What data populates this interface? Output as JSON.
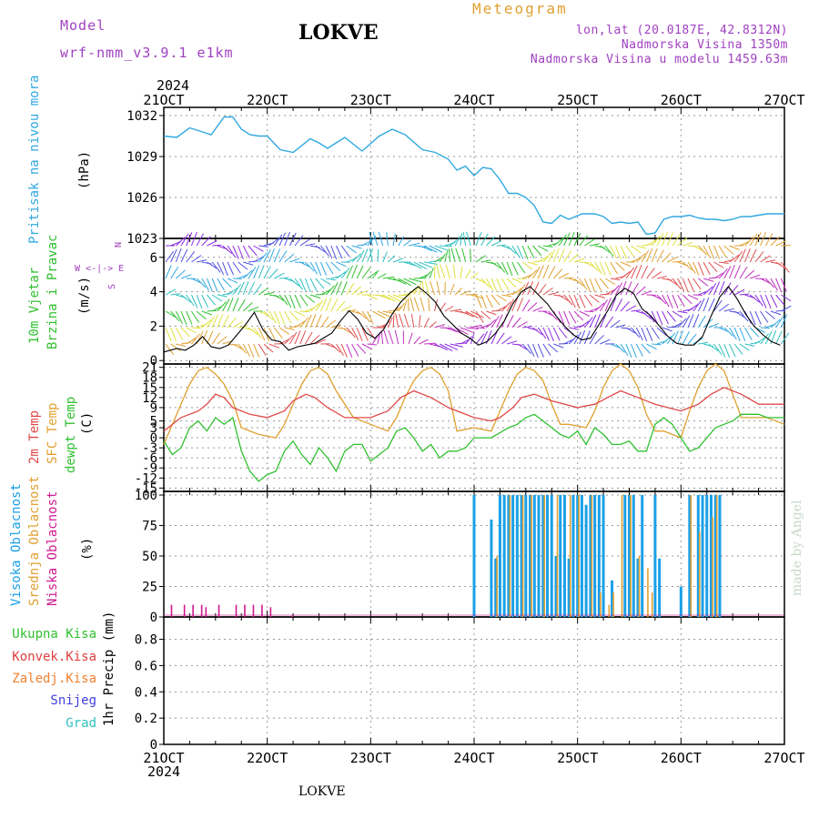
{
  "header": {
    "model_label": "Model",
    "model_name": "wrf-nmm_v3.9.1 e1km",
    "station": "LOKVE",
    "title": "Meteogram",
    "coords": "lon,lat (20.0187E, 42.8312N)",
    "elevation": "Nadmorska Visina 1350m",
    "model_elevation": "Nadmorska Visina u modelu 1459.63m"
  },
  "footer": {
    "station": "LOKVE",
    "watermark": "made by Angel"
  },
  "time_axis": {
    "year": "2024",
    "labels": [
      "21OCT",
      "22OCT",
      "23OCT",
      "24OCT",
      "25OCT",
      "26OCT",
      "27OCT"
    ]
  },
  "panel_labels": {
    "pressure": {
      "name": "Pritisak na nivou mora",
      "unit": "(hPa)"
    },
    "wind": {
      "name1": "10m Vjetar",
      "name2": "Brzina i Pravac",
      "unit": "(m/s)",
      "compass1": "N",
      "compass2": "W <-|-> E",
      "compass3": "S"
    },
    "temp": {
      "name1": "2m Temp",
      "name2": "SFC Temp",
      "name3": "dewpt Temp",
      "unit": "(C)"
    },
    "cloud": {
      "name1": "Visoka Oblacnost",
      "name2": "Srednja Oblacnost",
      "name3": "Niska Oblacnost",
      "unit": "(%)"
    },
    "precip": {
      "unit": "1hr Precip (mm)",
      "legend": [
        "Ukupna Kisa",
        "Konvek.Kisa",
        "Zaledj.Kisa",
        "Snijeg",
        "Grad"
      ]
    }
  },
  "colors": {
    "pressure": "#30a8e0",
    "temp2m": "#e04848",
    "sfc": "#e0a030",
    "dew": "#30c030",
    "high_cloud": "#1aa0e8",
    "mid_cloud": "#e0a030",
    "low_cloud": "#d01890",
    "rain": "#30c030",
    "conv": "#e04040",
    "freezing": "#f08030",
    "snow": "#4040e0",
    "hail": "#30c0c0",
    "model_text": "#a040c0",
    "title_text": "#e0a030"
  },
  "chart_data": [
    {
      "type": "line",
      "title": "Pritisak na nivou mora",
      "ylabel": "(hPa)",
      "yticks": [
        1023,
        1026,
        1029,
        1032
      ],
      "ylim": [
        1023,
        1032.6
      ],
      "xlim": [
        0,
        144
      ],
      "series": [
        {
          "x": [
            0,
            3,
            6,
            8,
            11,
            14,
            16,
            18,
            20,
            22,
            24,
            27,
            30,
            34,
            36,
            38,
            40,
            42,
            46,
            50,
            53,
            56,
            60,
            63,
            66,
            68,
            70,
            72,
            74,
            76,
            78,
            80,
            82,
            84,
            86,
            88,
            90,
            92,
            94,
            97,
            100,
            102,
            104,
            106,
            108,
            110,
            112,
            114,
            116,
            118,
            120,
            122,
            124,
            126,
            128,
            130,
            132,
            134,
            136,
            138,
            140,
            142,
            144
          ],
          "y": [
            1030.5,
            1030.4,
            1031.1,
            1030.9,
            1030.6,
            1031.9,
            1031.9,
            1031.0,
            1030.6,
            1030.5,
            1030.5,
            1029.5,
            1029.3,
            1030.3,
            1030.0,
            1029.6,
            1030.0,
            1030.4,
            1029.4,
            1030.5,
            1031.0,
            1030.6,
            1029.5,
            1029.3,
            1028.8,
            1028.0,
            1028.3,
            1027.6,
            1028.2,
            1028.1,
            1027.3,
            1026.3,
            1026.3,
            1026.0,
            1025.4,
            1024.2,
            1024.1,
            1024.7,
            1024.4,
            1024.8,
            1024.8,
            1024.6,
            1024.1,
            1024.2,
            1024.1,
            1024.2,
            1023.3,
            1023.4,
            1024.4,
            1024.6,
            1024.6,
            1024.7,
            1024.5,
            1024.4,
            1024.4,
            1024.3,
            1024.4,
            1024.6,
            1024.6,
            1024.7,
            1024.8,
            1024.8,
            1024.8
          ]
        }
      ]
    },
    {
      "type": "line",
      "title": "10m Vjetar",
      "ylabel": "(m/s)",
      "yticks": [
        0,
        2,
        4,
        6
      ],
      "ylim": [
        -0.2,
        7.1
      ],
      "xlim": [
        0,
        144
      ],
      "series": [
        {
          "name": "Brzina",
          "x": [
            0,
            3,
            5,
            7,
            9,
            11,
            13,
            15,
            17,
            19,
            21,
            23,
            25,
            27,
            29,
            31,
            33,
            35,
            37,
            39,
            41,
            43,
            45,
            47,
            49,
            51,
            53,
            55,
            57,
            59,
            61,
            63,
            65,
            67,
            69,
            71,
            73,
            75,
            77,
            79,
            81,
            83,
            85,
            87,
            89,
            91,
            93,
            95,
            97,
            99,
            101,
            103,
            105,
            107,
            109,
            111,
            113,
            115,
            117,
            119,
            121,
            123,
            125,
            127,
            129,
            131,
            133,
            135,
            137,
            139,
            141,
            143
          ],
          "y": [
            0.5,
            0.7,
            0.6,
            0.9,
            1.4,
            0.8,
            0.7,
            0.9,
            1.5,
            2.1,
            2.8,
            1.8,
            1.2,
            1.1,
            0.6,
            0.8,
            0.9,
            1.0,
            1.3,
            1.6,
            2.3,
            2.9,
            2.4,
            1.6,
            1.3,
            1.8,
            2.7,
            3.4,
            3.9,
            4.3,
            3.9,
            3.4,
            2.6,
            2.1,
            1.6,
            1.3,
            0.9,
            1.1,
            1.6,
            2.3,
            3.3,
            4.0,
            4.3,
            3.8,
            3.3,
            2.6,
            2.0,
            1.5,
            1.2,
            1.3,
            2.1,
            2.9,
            3.8,
            4.2,
            3.9,
            3.0,
            2.6,
            2.0,
            1.4,
            1.0,
            0.9,
            0.9,
            1.4,
            2.6,
            3.7,
            4.3,
            3.6,
            2.7,
            2.0,
            1.5,
            1.1,
            0.9
          ]
        }
      ]
    },
    {
      "type": "line",
      "title": "2m Temp / SFC Temp / dewpt Temp",
      "ylabel": "(C)",
      "yticks": [
        -15,
        -12,
        -9,
        -6,
        -3,
        0,
        3,
        5,
        9,
        12,
        15,
        18,
        21
      ],
      "ylim": [
        -16,
        22
      ],
      "xlim": [
        0,
        144
      ],
      "series": [
        {
          "name": "2m Temp",
          "x": [
            0,
            4,
            8,
            10,
            12,
            14,
            16,
            20,
            24,
            28,
            30,
            33,
            35,
            38,
            42,
            48,
            52,
            55,
            58,
            62,
            66,
            72,
            76,
            78,
            81,
            83,
            86,
            90,
            96,
            100,
            103,
            106,
            110,
            114,
            120,
            124,
            127,
            130,
            134,
            138,
            144
          ],
          "y": [
            2,
            6,
            8,
            10,
            13,
            12,
            9,
            7,
            6,
            8,
            11,
            13,
            12,
            9,
            6,
            6,
            8,
            12,
            14,
            12,
            9,
            6,
            5,
            6,
            9,
            12,
            13,
            11,
            9,
            10,
            12,
            14,
            12,
            10,
            8,
            10,
            13,
            15,
            13,
            10,
            10
          ]
        },
        {
          "name": "SFC Temp",
          "x": [
            0,
            2,
            4,
            6,
            8,
            10,
            12,
            14,
            16,
            18,
            22,
            26,
            28,
            30,
            32,
            34,
            36,
            38,
            40,
            44,
            48,
            52,
            54,
            56,
            58,
            60,
            62,
            64,
            66,
            68,
            72,
            76,
            78,
            80,
            82,
            84,
            86,
            88,
            90,
            92,
            94,
            98,
            100,
            102,
            104,
            106,
            108,
            110,
            112,
            114,
            116,
            120,
            122,
            124,
            126,
            128,
            130,
            132,
            134,
            136,
            140,
            144
          ],
          "y": [
            -2,
            4,
            10,
            16,
            20,
            21,
            19,
            16,
            11,
            3,
            1,
            0,
            4,
            10,
            16,
            20,
            21,
            19,
            14,
            6,
            4,
            2,
            6,
            12,
            17,
            20,
            21,
            19,
            14,
            2,
            3,
            2,
            8,
            14,
            19,
            21,
            20,
            17,
            10,
            4,
            4,
            3,
            8,
            15,
            20,
            22,
            20,
            15,
            7,
            2,
            2,
            0,
            8,
            15,
            20,
            22,
            20,
            13,
            6,
            6,
            6,
            4
          ]
        },
        {
          "name": "dewpt Temp",
          "x": [
            0,
            2,
            4,
            6,
            8,
            10,
            12,
            14,
            16,
            18,
            20,
            22,
            24,
            26,
            28,
            30,
            32,
            34,
            36,
            38,
            40,
            42,
            44,
            46,
            48,
            50,
            52,
            54,
            56,
            58,
            60,
            62,
            64,
            66,
            68,
            70,
            72,
            76,
            80,
            82,
            84,
            86,
            88,
            90,
            92,
            94,
            96,
            98,
            100,
            102,
            104,
            106,
            108,
            110,
            112,
            114,
            116,
            118,
            120,
            122,
            124,
            126,
            128,
            130,
            132,
            134,
            136,
            138,
            140,
            144
          ],
          "y": [
            -1,
            -5,
            -3,
            3,
            5,
            2,
            6,
            4,
            6,
            -4,
            -10,
            -13,
            -11,
            -10,
            -4,
            -1,
            -5,
            -8,
            -3,
            -6,
            -10,
            -4,
            -2,
            -2,
            -7,
            -5,
            -3,
            2,
            3,
            0,
            -4,
            -2,
            -6,
            -4,
            -4,
            -3,
            0,
            0,
            3,
            4,
            6,
            7,
            5,
            3,
            1,
            0,
            2,
            -2,
            3,
            1,
            -2,
            -2,
            -1,
            -4,
            -4,
            4,
            6,
            4,
            0,
            -4,
            -3,
            0,
            3,
            4,
            5,
            7,
            7,
            7,
            6,
            6
          ]
        }
      ]
    },
    {
      "type": "bar",
      "title": "Oblacnost",
      "ylabel": "(%)",
      "yticks": [
        0,
        25,
        50,
        75,
        100
      ],
      "ylim": [
        0,
        103
      ],
      "xlim": [
        0,
        144
      ],
      "series": [
        {
          "name": "Visoka Oblacnost",
          "x": [
            72,
            76,
            77,
            78,
            79,
            80,
            81,
            82,
            83,
            84,
            85,
            86,
            87,
            88,
            89,
            90,
            91,
            92,
            93,
            94,
            95,
            96,
            97,
            98,
            99,
            100,
            101,
            102,
            104,
            107,
            108,
            109,
            110,
            111,
            114,
            115,
            120,
            122,
            124,
            125,
            126,
            127,
            128,
            129
          ],
          "y": [
            100,
            80,
            48,
            100,
            100,
            100,
            100,
            100,
            100,
            100,
            100,
            100,
            100,
            100,
            100,
            100,
            50,
            100,
            100,
            48,
            100,
            100,
            100,
            92,
            100,
            100,
            100,
            100,
            30,
            100,
            100,
            100,
            48,
            100,
            100,
            48,
            25,
            100,
            100,
            100,
            100,
            100,
            100,
            100
          ]
        },
        {
          "name": "Srednja Oblacnost",
          "x": [
            77,
            80,
            83,
            85,
            88,
            91,
            94,
            96,
            99,
            101,
            103,
            104,
            106,
            108,
            110,
            112,
            113,
            122,
            124,
            127,
            128
          ],
          "y": [
            50,
            100,
            100,
            100,
            100,
            100,
            100,
            100,
            100,
            20,
            10,
            20,
            100,
            100,
            50,
            40,
            20,
            100,
            70,
            82,
            100
          ]
        },
        {
          "name": "Niska Oblacnost",
          "x": [
            2,
            5,
            7,
            9,
            10,
            13,
            17,
            19,
            21,
            23,
            25,
            30
          ],
          "y": [
            10,
            10,
            10,
            10,
            8,
            10,
            10,
            10,
            10,
            10,
            8,
            1
          ]
        }
      ]
    },
    {
      "type": "bar",
      "title": "1hr Precip",
      "ylabel": "1hr Precip (mm)",
      "yticks": [
        0,
        0.2,
        0.4,
        0.6,
        0.8
      ],
      "ylim": [
        0,
        0.97
      ],
      "xlim": [
        0,
        144
      ],
      "series": [
        {
          "name": "Ukupna Kisa",
          "x": [],
          "y": []
        },
        {
          "name": "Konvek.Kisa",
          "x": [],
          "y": []
        },
        {
          "name": "Zaledj.Kisa",
          "x": [],
          "y": []
        },
        {
          "name": "Snijeg",
          "x": [],
          "y": []
        },
        {
          "name": "Grad",
          "x": [],
          "y": []
        }
      ]
    }
  ]
}
